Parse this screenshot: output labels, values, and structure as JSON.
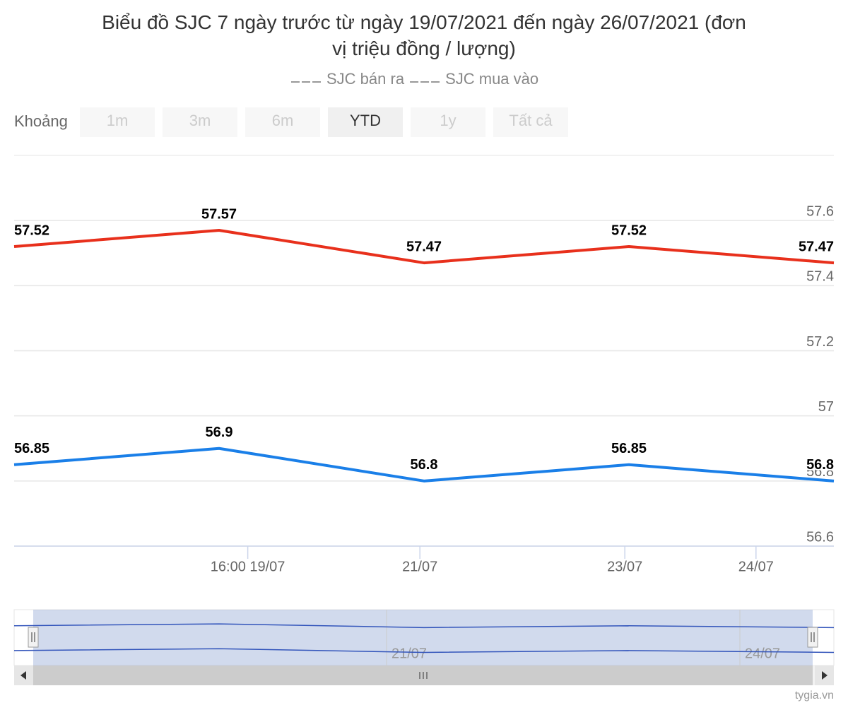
{
  "chart_data": {
    "type": "line",
    "title": "Biểu đồ SJC 7 ngày trước từ ngày 19/07/2021 đến ngày 26/07/2021 (đơn vị triệu đồng / lượng)",
    "range_selector": {
      "label": "Khoảng",
      "buttons": [
        "1m",
        "3m",
        "6m",
        "YTD",
        "1y",
        "Tất cả"
      ],
      "selected": 3
    },
    "categories": [
      null,
      null,
      null,
      null,
      null
    ],
    "series": [
      {
        "name": "SJC bán ra",
        "color": "#e8301c",
        "values": [
          57.52,
          57.57,
          57.47,
          57.52,
          57.47
        ]
      },
      {
        "name": "SJC mua vào",
        "color": "#1a7fe8",
        "values": [
          56.85,
          56.9,
          56.8,
          56.85,
          56.8
        ]
      }
    ],
    "xlim": [
      0,
      4
    ],
    "xticks": [
      {
        "value": 1.14,
        "label": "16:00 19/07"
      },
      {
        "value": 1.98,
        "label": "21/07"
      },
      {
        "value": 2.98,
        "label": "23/07"
      },
      {
        "value": 3.62,
        "label": "24/07"
      }
    ],
    "ylim": [
      56.6,
      57.8
    ],
    "yticks": [
      56.6,
      56.8,
      57,
      57.2,
      57.4,
      57.6
    ],
    "grid": true,
    "navigator_labels": [
      "21/07",
      "24/07"
    ],
    "credit": "tygia.vn"
  }
}
